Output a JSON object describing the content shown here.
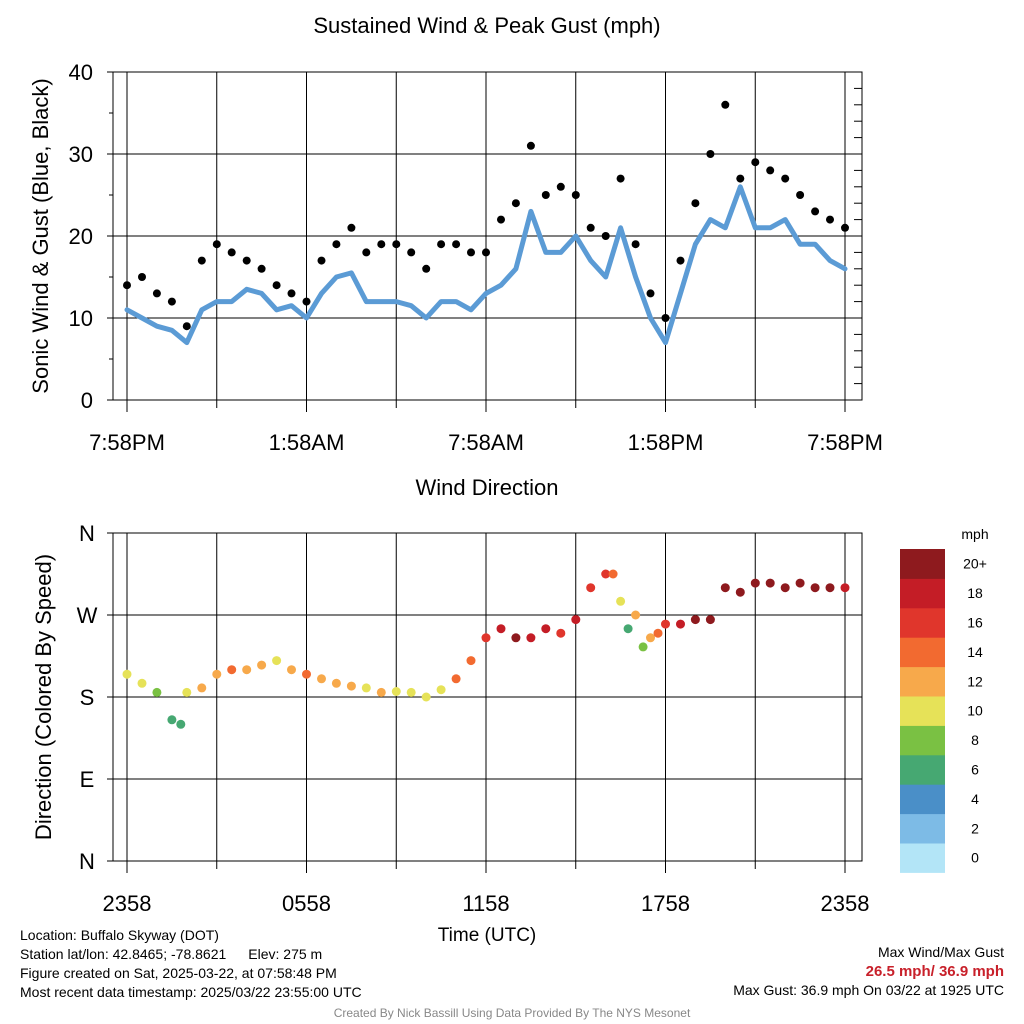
{
  "top_panel": {
    "title": "Sustained Wind & Peak Gust (mph)",
    "ylabel": "Sonic Wind & Gust (Blue, Black)",
    "yticks": [
      "0",
      "10",
      "20",
      "30",
      "40"
    ],
    "xticks": [
      "7:58PM",
      "1:58AM",
      "7:58AM",
      "1:58PM",
      "7:58PM"
    ]
  },
  "bottom_panel": {
    "title": "Wind Direction",
    "ylabel": "Direction (Colored By Speed)",
    "yticks": [
      "N",
      "E",
      "S",
      "W",
      "N"
    ],
    "xticks": [
      "2358",
      "0558",
      "1158",
      "1758",
      "2358"
    ],
    "xlabel": "Time (UTC)"
  },
  "colorbar": {
    "title": "mph",
    "labels": [
      "20+",
      "18",
      "16",
      "14",
      "12",
      "10",
      "8",
      "6",
      "4",
      "2",
      "0"
    ],
    "colors": [
      "#b3e5f7",
      "#7dbbe6",
      "#4a8fc8",
      "#46a872",
      "#7ac143",
      "#e6e258",
      "#f7a94b",
      "#f26a30",
      "#e0362c",
      "#c41d26",
      "#8e1a1e"
    ]
  },
  "info": {
    "location": "Location: Buffalo Skyway (DOT)",
    "station": "Station lat/lon: 42.8465; -78.8621",
    "elev": "Elev: 275 m",
    "created": "Figure created on Sat, 2025-03-22, at 07:58:48 PM",
    "recent": "Most recent data timestamp: 2025/03/22 23:55:00 UTC",
    "max_title": "Max Wind/Max Gust",
    "max_values": "26.5 mph/ 36.9 mph",
    "max_gust": "Max Gust: 36.9 mph On 03/22 at 1925 UTC",
    "credit": "Created By Nick Bassill Using Data Provided By The NYS Mesonet"
  },
  "colors": {
    "wind_line": "#5b9bd5",
    "gust_dots": "#000000"
  },
  "chart_data": [
    {
      "type": "line",
      "title": "Sustained Wind & Peak Gust (mph)",
      "xlabel": "",
      "ylabel": "Sonic Wind & Gust (Blue, Black)",
      "xlim": [
        0,
        24
      ],
      "ylim": [
        0,
        40
      ],
      "x_tick_labels": [
        "7:58PM",
        "1:58AM",
        "7:58AM",
        "1:58PM",
        "7:58PM"
      ],
      "series": [
        {
          "style": "line",
          "color": "#5b9bd5",
          "x": [
            0,
            0.5,
            1,
            1.5,
            2,
            2.5,
            3,
            3.5,
            4,
            4.5,
            5,
            5.5,
            6,
            6.5,
            7,
            7.5,
            8,
            8.5,
            9,
            9.5,
            10,
            10.5,
            11,
            11.5,
            12,
            12.5,
            13,
            13.5,
            14,
            14.5,
            15,
            15.5,
            16,
            16.5,
            17,
            17.5,
            18,
            18.5,
            19,
            19.5,
            20,
            20.5,
            21,
            21.5,
            22,
            22.5,
            23,
            23.5,
            24
          ],
          "y": [
            11,
            10,
            9,
            8.5,
            7,
            11,
            12,
            12,
            13.5,
            13,
            11,
            11.5,
            10,
            13,
            15,
            15.5,
            12,
            12,
            12,
            11.5,
            10,
            12,
            12,
            11,
            13,
            14,
            16,
            23,
            18,
            18,
            20,
            17,
            15,
            21,
            15,
            10,
            7,
            13,
            19,
            22,
            21,
            26,
            21,
            21,
            22,
            19,
            19,
            17,
            16
          ]
        },
        {
          "style": "scatter",
          "color": "#000000",
          "x": [
            0,
            0.5,
            1,
            1.5,
            2,
            2.5,
            3,
            3.5,
            4,
            4.5,
            5,
            5.5,
            6,
            6.5,
            7,
            7.5,
            8,
            8.5,
            9,
            9.5,
            10,
            10.5,
            11,
            11.5,
            12,
            12.5,
            13,
            13.5,
            14,
            14.5,
            15,
            15.5,
            16,
            16.5,
            17,
            17.5,
            18,
            18.5,
            19,
            19.5,
            20,
            20.5,
            21,
            21.5,
            22,
            22.5,
            23,
            23.5,
            24
          ],
          "y": [
            14,
            15,
            13,
            12,
            9,
            17,
            19,
            18,
            17,
            16,
            14,
            13,
            12,
            17,
            19,
            21,
            18,
            19,
            19,
            18,
            16,
            19,
            19,
            18,
            18,
            22,
            24,
            31,
            25,
            26,
            25,
            21,
            20,
            27,
            19,
            13,
            10,
            17,
            24,
            30,
            36,
            27,
            29,
            28,
            27,
            25,
            23,
            22,
            21
          ]
        }
      ]
    },
    {
      "type": "scatter",
      "title": "Wind Direction",
      "xlabel": "Time (UTC)",
      "ylabel": "Direction (Colored By Speed)",
      "xlim": [
        0,
        24
      ],
      "ylim": [
        0,
        360
      ],
      "x_tick_labels": [
        "2358",
        "0558",
        "1158",
        "1758",
        "2358"
      ],
      "y_tick_labels": [
        "N",
        "E",
        "S",
        "W",
        "N"
      ],
      "color_by": "wind speed (mph)",
      "x": [
        0,
        0.5,
        1,
        1.5,
        1.8,
        2,
        2.5,
        3,
        3.5,
        4,
        4.5,
        5,
        5.5,
        6,
        6.5,
        7,
        7.5,
        8,
        8.5,
        9,
        9.5,
        10,
        10.5,
        11,
        11.5,
        12,
        12.5,
        13,
        13.5,
        14,
        14.5,
        15,
        15.5,
        16,
        16.25,
        16.5,
        16.75,
        17,
        17.25,
        17.5,
        17.75,
        18,
        18.5,
        19,
        19.5,
        20,
        20.5,
        21,
        21.5,
        22,
        22.5,
        23,
        23.5,
        24
      ],
      "y": [
        205,
        195,
        185,
        155,
        150,
        185,
        190,
        205,
        210,
        210,
        215,
        220,
        210,
        205,
        200,
        195,
        192,
        190,
        185,
        186,
        185,
        180,
        188,
        200,
        220,
        245,
        255,
        245,
        245,
        255,
        250,
        265,
        300,
        315,
        315,
        285,
        255,
        270,
        235,
        245,
        250,
        260,
        260,
        265,
        265,
        300,
        295,
        305,
        305,
        300,
        305,
        300,
        300,
        300
      ],
      "speed": [
        10,
        11,
        9,
        7,
        6,
        10,
        12,
        13,
        14,
        13,
        12,
        11,
        13,
        14,
        13,
        13,
        12,
        11,
        12,
        10,
        10,
        11,
        10,
        14,
        15,
        16,
        18,
        20,
        19,
        18,
        17,
        18,
        16,
        17,
        15,
        10,
        6,
        12,
        8,
        12,
        14,
        16,
        18,
        20,
        20,
        21,
        21,
        20,
        21,
        20,
        20,
        21,
        20,
        19
      ]
    }
  ]
}
